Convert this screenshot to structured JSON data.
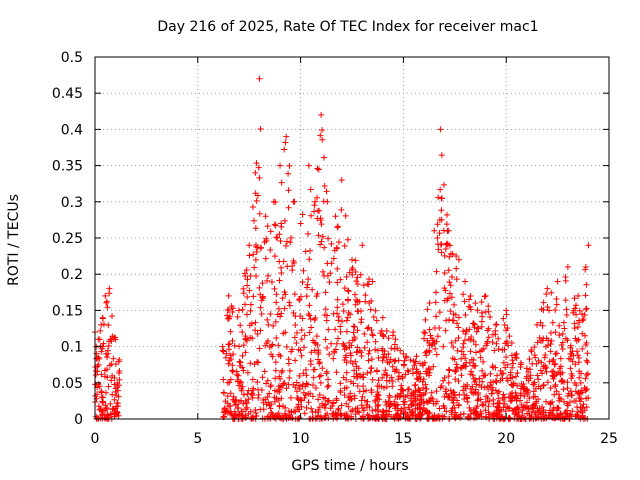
{
  "chart_data": {
    "type": "scatter",
    "title": "Day 216 of 2025, Rate Of TEC Index for receiver mac1",
    "xlabel": "GPS time / hours",
    "ylabel": "ROTI / TECUs",
    "xlim": [
      0,
      25
    ],
    "ylim": [
      0,
      0.5
    ],
    "x_ticks": [
      0,
      5,
      10,
      15,
      20,
      25
    ],
    "x_tick_labels": [
      "0",
      "5",
      "10",
      "15",
      "20",
      "25"
    ],
    "y_ticks": [
      0,
      0.05,
      0.1,
      0.15,
      0.2,
      0.25,
      0.3,
      0.35,
      0.4,
      0.45,
      0.5
    ],
    "y_tick_labels": [
      "0",
      "0.05",
      "0.1",
      "0.15",
      "0.2",
      "0.25",
      "0.3",
      "0.35",
      "0.4",
      "0.45",
      "0.5"
    ],
    "grid": true,
    "marker": "plus",
    "series": [
      {
        "name": "ROTI",
        "color": "#ff0000",
        "data_gaps_hours": [
          [
            1.2,
            6.2
          ]
        ],
        "envelope": [
          [
            0.0,
            0.12
          ],
          [
            0.3,
            0.13
          ],
          [
            0.5,
            0.17
          ],
          [
            0.7,
            0.18
          ],
          [
            1.0,
            0.11
          ],
          [
            6.2,
            0.1
          ],
          [
            6.5,
            0.17
          ],
          [
            7.0,
            0.15
          ],
          [
            7.5,
            0.24
          ],
          [
            7.8,
            0.34
          ],
          [
            8.0,
            0.47
          ],
          [
            8.3,
            0.28
          ],
          [
            8.7,
            0.3
          ],
          [
            9.0,
            0.35
          ],
          [
            9.3,
            0.39
          ],
          [
            9.7,
            0.3
          ],
          [
            10.0,
            0.27
          ],
          [
            10.4,
            0.35
          ],
          [
            10.7,
            0.3
          ],
          [
            11.0,
            0.42
          ],
          [
            11.3,
            0.3
          ],
          [
            11.7,
            0.28
          ],
          [
            12.0,
            0.33
          ],
          [
            12.5,
            0.22
          ],
          [
            13.0,
            0.24
          ],
          [
            13.5,
            0.19
          ],
          [
            14.0,
            0.14
          ],
          [
            14.5,
            0.12
          ],
          [
            15.0,
            0.09
          ],
          [
            15.5,
            0.08
          ],
          [
            16.0,
            0.12
          ],
          [
            16.5,
            0.26
          ],
          [
            16.8,
            0.4
          ],
          [
            17.2,
            0.26
          ],
          [
            17.7,
            0.22
          ],
          [
            18.0,
            0.19
          ],
          [
            18.5,
            0.16
          ],
          [
            19.0,
            0.17
          ],
          [
            19.5,
            0.13
          ],
          [
            20.0,
            0.15
          ],
          [
            20.5,
            0.09
          ],
          [
            21.0,
            0.07
          ],
          [
            21.5,
            0.13
          ],
          [
            22.0,
            0.18
          ],
          [
            22.5,
            0.19
          ],
          [
            23.0,
            0.21
          ],
          [
            23.5,
            0.17
          ],
          [
            24.0,
            0.24
          ]
        ]
      }
    ]
  }
}
